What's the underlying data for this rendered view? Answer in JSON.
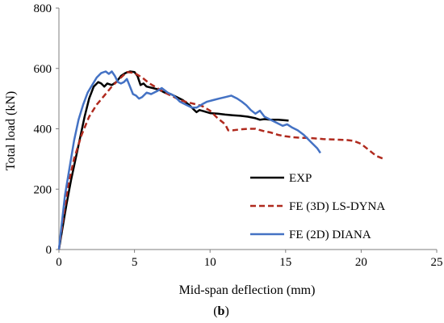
{
  "chart_data": {
    "type": "line",
    "title": "",
    "xlabel": "Mid-span deflection (mm)",
    "ylabel": "Total load (kN)",
    "xlim": [
      0,
      25
    ],
    "ylim": [
      0,
      800
    ],
    "x_ticks": [
      0,
      5,
      10,
      15,
      20,
      25
    ],
    "y_ticks": [
      0,
      200,
      400,
      600,
      800
    ],
    "grid": false,
    "legend_position": "bottom-right",
    "caption": {
      "open": "(",
      "letter": "b",
      "close": ")"
    },
    "series": [
      {
        "name": "EXP",
        "color": "#000000",
        "dash": "solid",
        "points": [
          [
            0,
            0
          ],
          [
            0.2,
            60
          ],
          [
            0.5,
            150
          ],
          [
            0.8,
            230
          ],
          [
            1.1,
            300
          ],
          [
            1.4,
            370
          ],
          [
            1.7,
            440
          ],
          [
            2.0,
            500
          ],
          [
            2.3,
            540
          ],
          [
            2.6,
            555
          ],
          [
            2.8,
            550
          ],
          [
            3.0,
            540
          ],
          [
            3.2,
            550
          ],
          [
            3.5,
            545
          ],
          [
            3.8,
            555
          ],
          [
            4.1,
            575
          ],
          [
            4.4,
            585
          ],
          [
            4.7,
            590
          ],
          [
            5.0,
            588
          ],
          [
            5.2,
            575
          ],
          [
            5.4,
            545
          ],
          [
            5.6,
            550
          ],
          [
            5.8,
            540
          ],
          [
            6.2,
            535
          ],
          [
            6.6,
            530
          ],
          [
            7.0,
            520
          ],
          [
            7.4,
            515
          ],
          [
            7.8,
            505
          ],
          [
            8.2,
            495
          ],
          [
            8.6,
            480
          ],
          [
            8.9,
            465
          ],
          [
            9.1,
            455
          ],
          [
            9.3,
            462
          ],
          [
            9.6,
            458
          ],
          [
            10.0,
            452
          ],
          [
            10.5,
            450
          ],
          [
            11.0,
            447
          ],
          [
            11.5,
            445
          ],
          [
            12.0,
            443
          ],
          [
            12.5,
            440
          ],
          [
            13.0,
            435
          ],
          [
            13.3,
            430
          ],
          [
            13.6,
            432
          ],
          [
            14.0,
            430
          ],
          [
            14.5,
            430
          ],
          [
            15.0,
            428
          ],
          [
            15.2,
            427
          ]
        ]
      },
      {
        "name": "FE (3D) LS-DYNA",
        "color": "#b02a1e",
        "dash": "dashed",
        "points": [
          [
            0,
            0
          ],
          [
            0.3,
            110
          ],
          [
            0.6,
            210
          ],
          [
            1.0,
            300
          ],
          [
            1.5,
            380
          ],
          [
            2.0,
            440
          ],
          [
            2.5,
            480
          ],
          [
            3.0,
            510
          ],
          [
            3.5,
            540
          ],
          [
            4.0,
            565
          ],
          [
            4.5,
            588
          ],
          [
            5.0,
            585
          ],
          [
            5.5,
            570
          ],
          [
            6.0,
            550
          ],
          [
            6.5,
            535
          ],
          [
            7.0,
            520
          ],
          [
            7.5,
            508
          ],
          [
            8.0,
            495
          ],
          [
            8.5,
            488
          ],
          [
            9.0,
            482
          ],
          [
            9.5,
            475
          ],
          [
            10.0,
            460
          ],
          [
            10.5,
            435
          ],
          [
            11.0,
            415
          ],
          [
            11.2,
            395
          ],
          [
            11.5,
            395
          ],
          [
            12.0,
            398
          ],
          [
            12.5,
            400
          ],
          [
            13.0,
            400
          ],
          [
            13.5,
            393
          ],
          [
            14.0,
            388
          ],
          [
            14.5,
            380
          ],
          [
            15.0,
            375
          ],
          [
            15.5,
            372
          ],
          [
            16.0,
            370
          ],
          [
            16.5,
            370
          ],
          [
            17.0,
            368
          ],
          [
            17.5,
            366
          ],
          [
            18.0,
            365
          ],
          [
            18.5,
            364
          ],
          [
            19.0,
            363
          ],
          [
            19.5,
            360
          ],
          [
            20.0,
            350
          ],
          [
            20.5,
            330
          ],
          [
            21.0,
            310
          ],
          [
            21.5,
            300
          ]
        ]
      },
      {
        "name": "FE (2D) DIANA",
        "color": "#4472c4",
        "dash": "solid",
        "points": [
          [
            0,
            0
          ],
          [
            0.2,
            90
          ],
          [
            0.4,
            180
          ],
          [
            0.7,
            270
          ],
          [
            1.0,
            360
          ],
          [
            1.3,
            430
          ],
          [
            1.6,
            480
          ],
          [
            1.9,
            520
          ],
          [
            2.2,
            545
          ],
          [
            2.5,
            570
          ],
          [
            2.8,
            585
          ],
          [
            3.1,
            590
          ],
          [
            3.3,
            582
          ],
          [
            3.5,
            590
          ],
          [
            3.7,
            575
          ],
          [
            3.9,
            555
          ],
          [
            4.1,
            550
          ],
          [
            4.3,
            555
          ],
          [
            4.5,
            565
          ],
          [
            4.7,
            540
          ],
          [
            4.9,
            515
          ],
          [
            5.1,
            510
          ],
          [
            5.3,
            500
          ],
          [
            5.5,
            505
          ],
          [
            5.8,
            520
          ],
          [
            6.1,
            515
          ],
          [
            6.5,
            525
          ],
          [
            6.8,
            535
          ],
          [
            7.2,
            520
          ],
          [
            7.6,
            510
          ],
          [
            8.0,
            490
          ],
          [
            8.4,
            480
          ],
          [
            8.8,
            470
          ],
          [
            9.1,
            470
          ],
          [
            9.5,
            482
          ],
          [
            9.8,
            490
          ],
          [
            10.2,
            495
          ],
          [
            10.6,
            500
          ],
          [
            11.0,
            505
          ],
          [
            11.4,
            510
          ],
          [
            11.8,
            500
          ],
          [
            12.1,
            490
          ],
          [
            12.4,
            478
          ],
          [
            12.7,
            462
          ],
          [
            13.0,
            450
          ],
          [
            13.3,
            460
          ],
          [
            13.6,
            440
          ],
          [
            14.0,
            430
          ],
          [
            14.4,
            420
          ],
          [
            14.8,
            410
          ],
          [
            15.1,
            415
          ],
          [
            15.4,
            405
          ],
          [
            15.8,
            395
          ],
          [
            16.2,
            380
          ],
          [
            16.5,
            365
          ],
          [
            16.8,
            350
          ],
          [
            17.1,
            335
          ],
          [
            17.3,
            320
          ]
        ]
      }
    ]
  }
}
